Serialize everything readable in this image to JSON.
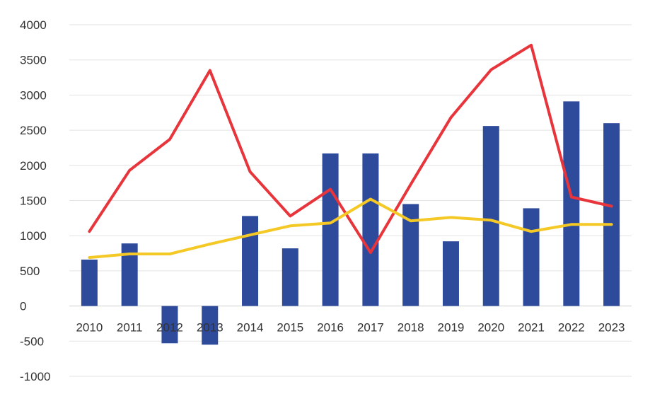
{
  "chart_data": {
    "type": "bar",
    "categories": [
      "2010",
      "2011",
      "2012",
      "2013",
      "2014",
      "2015",
      "2016",
      "2017",
      "2018",
      "2019",
      "2020",
      "2021",
      "2022",
      "2023"
    ],
    "ylim": [
      -1000,
      4000
    ],
    "yticks": [
      "4000",
      "3500",
      "3000",
      "2500",
      "2000",
      "1500",
      "1000",
      "500",
      "0",
      "-500",
      "-1000"
    ],
    "yticks_values": [
      4000,
      3500,
      3000,
      2500,
      2000,
      1500,
      1000,
      500,
      0,
      -500,
      -1000
    ],
    "grid": true,
    "legend": "none",
    "series": [
      {
        "kind": "bar",
        "color": "#2e4a9b",
        "values": [
          660,
          890,
          -530,
          -550,
          1280,
          820,
          2170,
          2170,
          1450,
          920,
          2560,
          1390,
          2910,
          2600
        ]
      },
      {
        "kind": "line",
        "color": "#e8343b",
        "values": [
          1060,
          1930,
          2370,
          3350,
          1910,
          1280,
          1660,
          760,
          1730,
          2680,
          3360,
          3710,
          1550,
          1420
        ]
      },
      {
        "kind": "line",
        "color": "#f4c825",
        "values": [
          690,
          740,
          740,
          880,
          1010,
          1140,
          1180,
          1520,
          1210,
          1260,
          1220,
          1060,
          1160,
          1160
        ]
      }
    ]
  }
}
